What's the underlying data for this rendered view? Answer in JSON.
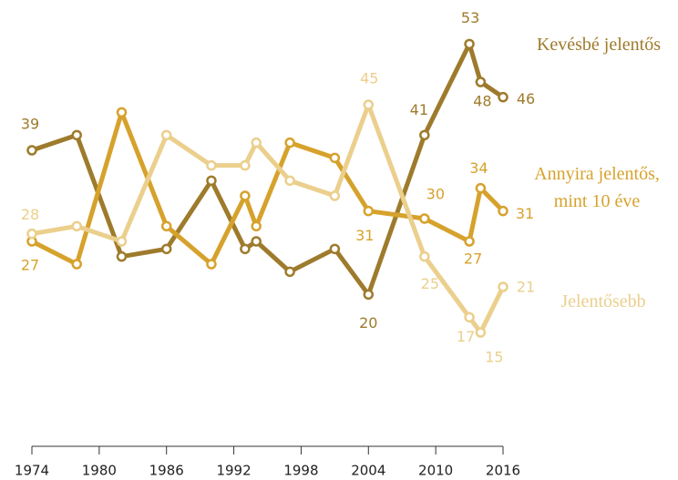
{
  "chart_data": {
    "type": "line",
    "x": [
      1974,
      1978,
      1982,
      1986,
      1990,
      1993,
      1994,
      1997,
      2001,
      2004,
      2009,
      2013,
      2014,
      2016
    ],
    "series": [
      {
        "name": "Kevésbé jelentős",
        "color": "#9e7b2c",
        "values": [
          39,
          41,
          25,
          26,
          35,
          26,
          27,
          23,
          26,
          20,
          41,
          53,
          48,
          46
        ]
      },
      {
        "name": "Annyira jelentős, mint 10 éve",
        "color": "#d6a22c",
        "values": [
          27,
          24,
          44,
          29,
          24,
          33,
          29,
          40,
          38,
          31,
          30,
          27,
          34,
          31
        ]
      },
      {
        "name": "Jelentősebb",
        "color": "#ebcf8c",
        "values": [
          28,
          29,
          27,
          41,
          37,
          37,
          40,
          35,
          33,
          45,
          25,
          17,
          15,
          21
        ]
      }
    ],
    "xlim": [
      1974,
      2016
    ],
    "xticks": [
      1974,
      1980,
      1986,
      1992,
      1998,
      2004,
      2010,
      2016
    ],
    "ylim": [
      0,
      54
    ]
  }
}
